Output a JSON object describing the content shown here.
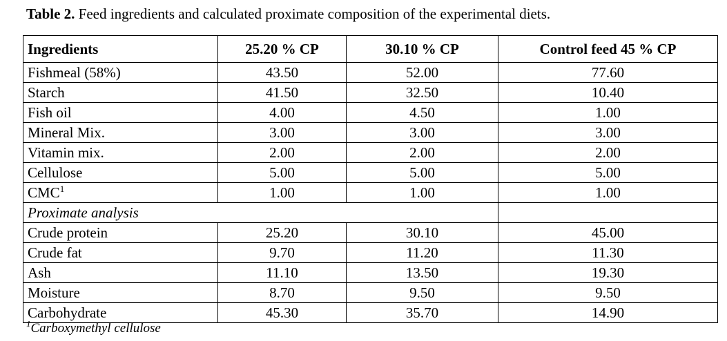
{
  "caption": {
    "label": "Table 2.",
    "text": "Feed ingredients and calculated proximate composition of the experimental diets."
  },
  "table": {
    "headers": [
      "Ingredients",
      "25.20 % CP",
      "30.10 % CP",
      "Control feed 45 %  CP"
    ],
    "ingredients": [
      {
        "name": "Fishmeal (58%)",
        "values": [
          "43.50",
          "52.00",
          "77.60"
        ]
      },
      {
        "name": "Starch",
        "values": [
          "41.50",
          "32.50",
          "10.40"
        ]
      },
      {
        "name": "Fish oil",
        "values": [
          "4.00",
          "4.50",
          "1.00"
        ]
      },
      {
        "name": "Mineral Mix.",
        "values": [
          "3.00",
          "3.00",
          "3.00"
        ]
      },
      {
        "name": "Vitamin mix.",
        "values": [
          "2.00",
          "2.00",
          "2.00"
        ]
      },
      {
        "name": "Cellulose",
        "values": [
          "5.00",
          "5.00",
          "5.00"
        ]
      },
      {
        "name": "CMC",
        "sup": "1",
        "values": [
          "1.00",
          "1.00",
          "1.00"
        ]
      }
    ],
    "section_label": "Proximate analysis",
    "proximate": [
      {
        "name": "Crude protein",
        "values": [
          "25.20",
          "30.10",
          "45.00"
        ]
      },
      {
        "name": "Crude fat",
        "values": [
          "9.70",
          "11.20",
          "11.30"
        ]
      },
      {
        "name": "Ash",
        "values": [
          "11.10",
          "13.50",
          "19.30"
        ]
      },
      {
        "name": "Moisture",
        "values": [
          "8.70",
          "9.50",
          "9.50"
        ]
      },
      {
        "name": "Carbohydrate",
        "values": [
          "45.30",
          "35.70",
          "14.90"
        ]
      }
    ]
  },
  "footnote": {
    "marker": "1",
    "text": "Carboxymethyl cellulose"
  }
}
